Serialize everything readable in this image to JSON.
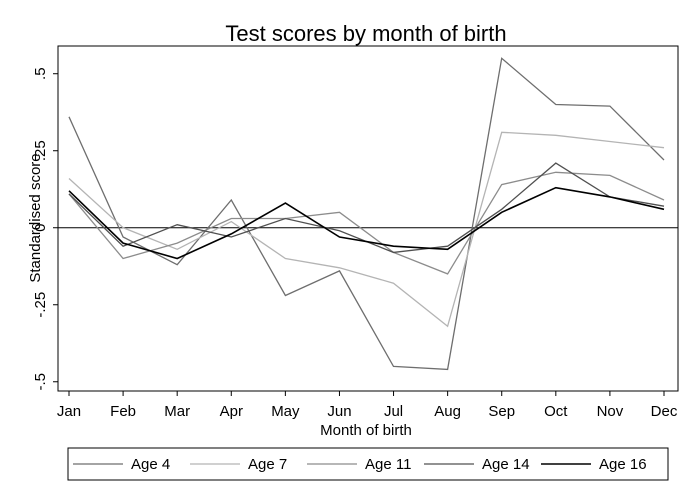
{
  "chart_data": {
    "type": "line",
    "title": "Test scores by month of birth",
    "xlabel": "Month of birth",
    "ylabel": "Standardised score",
    "categories": [
      "Jan",
      "Feb",
      "Mar",
      "Apr",
      "May",
      "Jun",
      "Jul",
      "Aug",
      "Sep",
      "Oct",
      "Nov",
      "Dec"
    ],
    "ylim": [
      -0.53,
      0.59
    ],
    "yticks": [
      0.5,
      0.25,
      0,
      -0.25,
      -0.5
    ],
    "ytick_labels": [
      ".5",
      ".25",
      "0",
      "-.25",
      "-.5"
    ],
    "grid": false,
    "reference_line": 0,
    "legend_position": "bottom",
    "series": [
      {
        "name": "Age 4",
        "color": "#6e6e6e",
        "values": [
          0.36,
          -0.03,
          -0.12,
          0.09,
          -0.22,
          -0.14,
          -0.45,
          -0.46,
          0.55,
          0.4,
          0.395,
          0.22
        ]
      },
      {
        "name": "Age 7",
        "color": "#b4b4b4",
        "values": [
          0.16,
          0.0,
          -0.07,
          0.02,
          -0.1,
          -0.13,
          -0.18,
          -0.32,
          0.31,
          0.3,
          0.28,
          0.26
        ]
      },
      {
        "name": "Age 11",
        "color": "#8c8c8c",
        "values": [
          0.11,
          -0.1,
          -0.05,
          0.03,
          0.03,
          0.05,
          -0.08,
          -0.15,
          0.14,
          0.18,
          0.17,
          0.09
        ]
      },
      {
        "name": "Age 14",
        "color": "#505050",
        "values": [
          0.11,
          -0.06,
          0.01,
          -0.03,
          0.03,
          -0.01,
          -0.08,
          -0.06,
          0.06,
          0.21,
          0.1,
          0.07
        ]
      },
      {
        "name": "Age 16",
        "color": "#000000",
        "values": [
          0.12,
          -0.05,
          -0.1,
          -0.02,
          0.08,
          -0.03,
          -0.06,
          -0.07,
          0.05,
          0.13,
          0.1,
          0.06
        ]
      }
    ]
  }
}
